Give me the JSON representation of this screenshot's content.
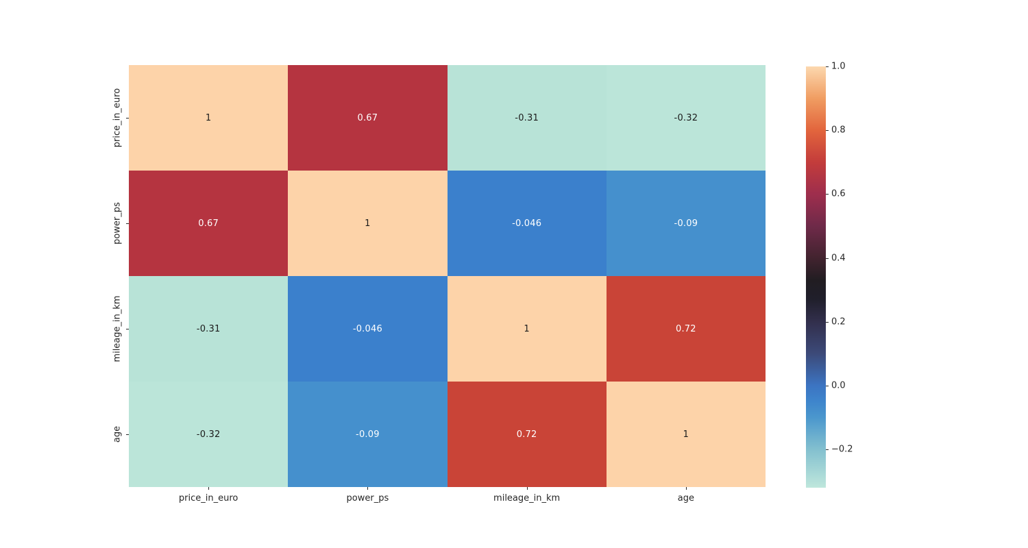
{
  "chart_data": {
    "type": "heatmap",
    "title": "",
    "xlabel": "",
    "ylabel": "",
    "categories": [
      "price_in_euro",
      "power_ps",
      "mileage_in_km",
      "age"
    ],
    "matrix": [
      [
        1,
        0.67,
        -0.31,
        -0.32
      ],
      [
        0.67,
        1,
        -0.046,
        -0.09
      ],
      [
        -0.31,
        -0.046,
        1,
        0.72
      ],
      [
        -0.32,
        -0.09,
        0.72,
        1
      ]
    ],
    "annotations": [
      [
        "1",
        "0.67",
        "-0.31",
        "-0.32"
      ],
      [
        "0.67",
        "1",
        "-0.046",
        "-0.09"
      ],
      [
        "-0.31",
        "-0.046",
        "1",
        "0.72"
      ],
      [
        "-0.32",
        "-0.09",
        "0.72",
        "1"
      ]
    ],
    "cell_colors": [
      [
        "#fdd3a9",
        "#b53440",
        "#b8e3d7",
        "#bbe5d9"
      ],
      [
        "#b53440",
        "#fdd3a9",
        "#3b80cc",
        "#4590cd"
      ],
      [
        "#b8e3d7",
        "#3b80cc",
        "#fdd3a9",
        "#c94437"
      ],
      [
        "#bbe5d9",
        "#4590cd",
        "#c94437",
        "#fdd3a9"
      ]
    ],
    "text_colors": [
      [
        "#1a1a1a",
        "#ffffff",
        "#1a1a1a",
        "#1a1a1a"
      ],
      [
        "#ffffff",
        "#1a1a1a",
        "#ffffff",
        "#ffffff"
      ],
      [
        "#1a1a1a",
        "#ffffff",
        "#1a1a1a",
        "#ffffff"
      ],
      [
        "#1a1a1a",
        "#ffffff",
        "#ffffff",
        "#1a1a1a"
      ]
    ],
    "colormap": "icefire",
    "vmin": -0.32,
    "vmax": 1.0,
    "colorbar": {
      "tick_labels": [
        "1.0",
        "0.8",
        "0.6",
        "0.4",
        "0.2",
        "0.0",
        "−0.2"
      ],
      "tick_values": [
        1.0,
        0.8,
        0.6,
        0.4,
        0.2,
        0.0,
        -0.2
      ],
      "gradient_stops": [
        {
          "value": 1.0,
          "color": "#fcd8af"
        },
        {
          "value": 0.9,
          "color": "#f09d62"
        },
        {
          "value": 0.8,
          "color": "#e2653d"
        },
        {
          "value": 0.7,
          "color": "#c33c3b"
        },
        {
          "value": 0.6,
          "color": "#9e2e4d"
        },
        {
          "value": 0.5,
          "color": "#6f2a49"
        },
        {
          "value": 0.4,
          "color": "#42232f"
        },
        {
          "value": 0.33,
          "color": "#211d22"
        },
        {
          "value": 0.27,
          "color": "#201f2b"
        },
        {
          "value": 0.2,
          "color": "#322f4c"
        },
        {
          "value": 0.1,
          "color": "#3c4a79"
        },
        {
          "value": 0.0,
          "color": "#3c74c2"
        },
        {
          "value": -0.05,
          "color": "#3e85cc"
        },
        {
          "value": -0.1,
          "color": "#4b97cd"
        },
        {
          "value": -0.2,
          "color": "#83c0cf"
        },
        {
          "value": -0.32,
          "color": "#bfe7dc"
        }
      ]
    },
    "layout": {
      "grid": false,
      "legend": false,
      "colorbar_position": "right"
    }
  }
}
